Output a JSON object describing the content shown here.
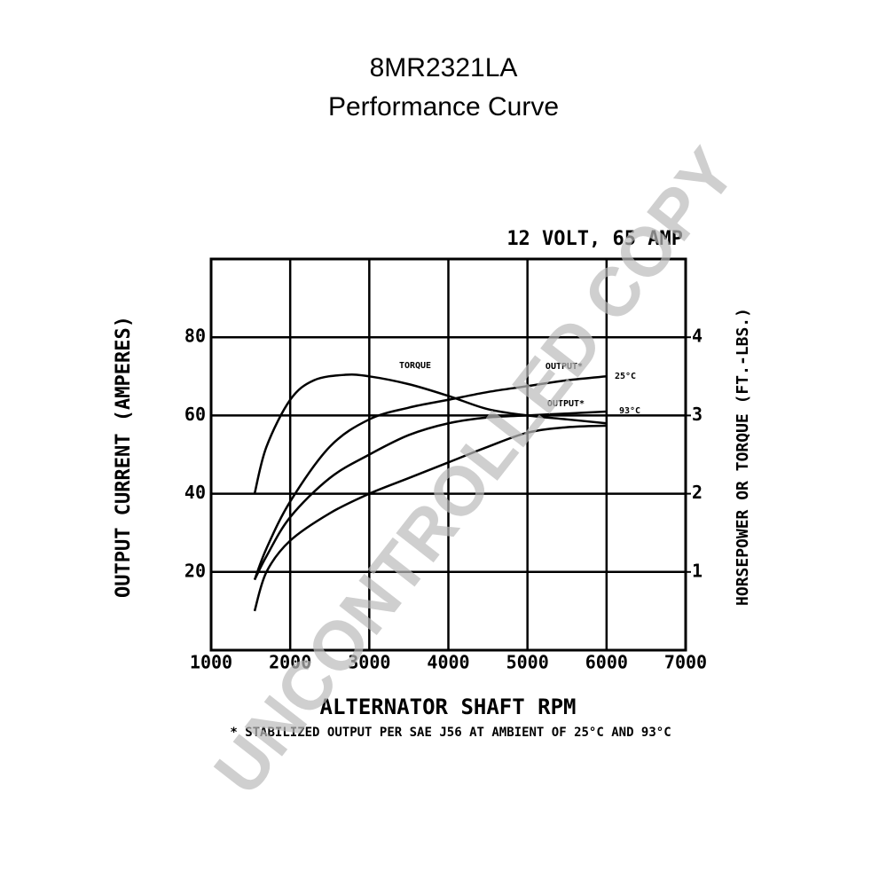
{
  "chart_data": {
    "type": "line",
    "title": "8MR2321LA",
    "subtitle": "Performance Curve",
    "heading": "12 VOLT, 65 AMP",
    "xlabel": "ALTERNATOR SHAFT RPM",
    "ylabel": "OUTPUT CURRENT (AMPERES)",
    "y2label": "HORSEPOWER OR TORQUE (FT.-LBS.)",
    "footnote": "* STABILIZED OUTPUT PER SAE J56 AT AMBIENT OF 25°C AND 93°C",
    "watermark": "UNCONTROLLED COPY",
    "annotations": [
      "OUTPUT*",
      "OUTPUT*"
    ],
    "xlim": [
      1000,
      7000
    ],
    "xticks": [
      1000,
      2000,
      3000,
      4000,
      5000,
      6000,
      7000
    ],
    "ylim": [
      0,
      100
    ],
    "yticks": [
      20,
      40,
      60,
      80
    ],
    "y2lim": [
      0,
      5
    ],
    "y2ticks": [
      1,
      2,
      3,
      4
    ],
    "grid": true,
    "series": [
      {
        "name": "TORQUE",
        "color": "#000000",
        "axis": "y2",
        "x": [
          1550,
          1700,
          2000,
          2300,
          2700,
          3000,
          3500,
          4000,
          4500,
          5000,
          5500,
          6000
        ],
        "values": [
          2.0,
          2.6,
          3.2,
          3.45,
          3.52,
          3.5,
          3.4,
          3.25,
          3.08,
          3.0,
          2.95,
          2.9
        ]
      },
      {
        "name": "25°C",
        "color": "#000000",
        "x": [
          1550,
          1700,
          2000,
          2500,
          3000,
          3500,
          4000,
          4500,
          5000,
          5500,
          6000
        ],
        "values": [
          18,
          26,
          38,
          52,
          59,
          62,
          64,
          66,
          67.5,
          69,
          70
        ]
      },
      {
        "name": "93°C",
        "color": "#000000",
        "x": [
          1550,
          1700,
          2000,
          2500,
          3000,
          3500,
          4000,
          4500,
          5000,
          5500,
          6000
        ],
        "values": [
          18,
          24,
          34,
          44,
          50,
          55,
          58,
          59.5,
          60,
          60.5,
          61
        ]
      },
      {
        "color": "#000000",
        "axis": "y2",
        "x": [
          1550,
          1700,
          2000,
          2500,
          3000,
          3500,
          4000,
          4500,
          5000,
          5500,
          6000
        ],
        "values": [
          0.5,
          1.0,
          1.4,
          1.75,
          2.0,
          2.2,
          2.4,
          2.6,
          2.78,
          2.85,
          2.87
        ]
      }
    ]
  }
}
